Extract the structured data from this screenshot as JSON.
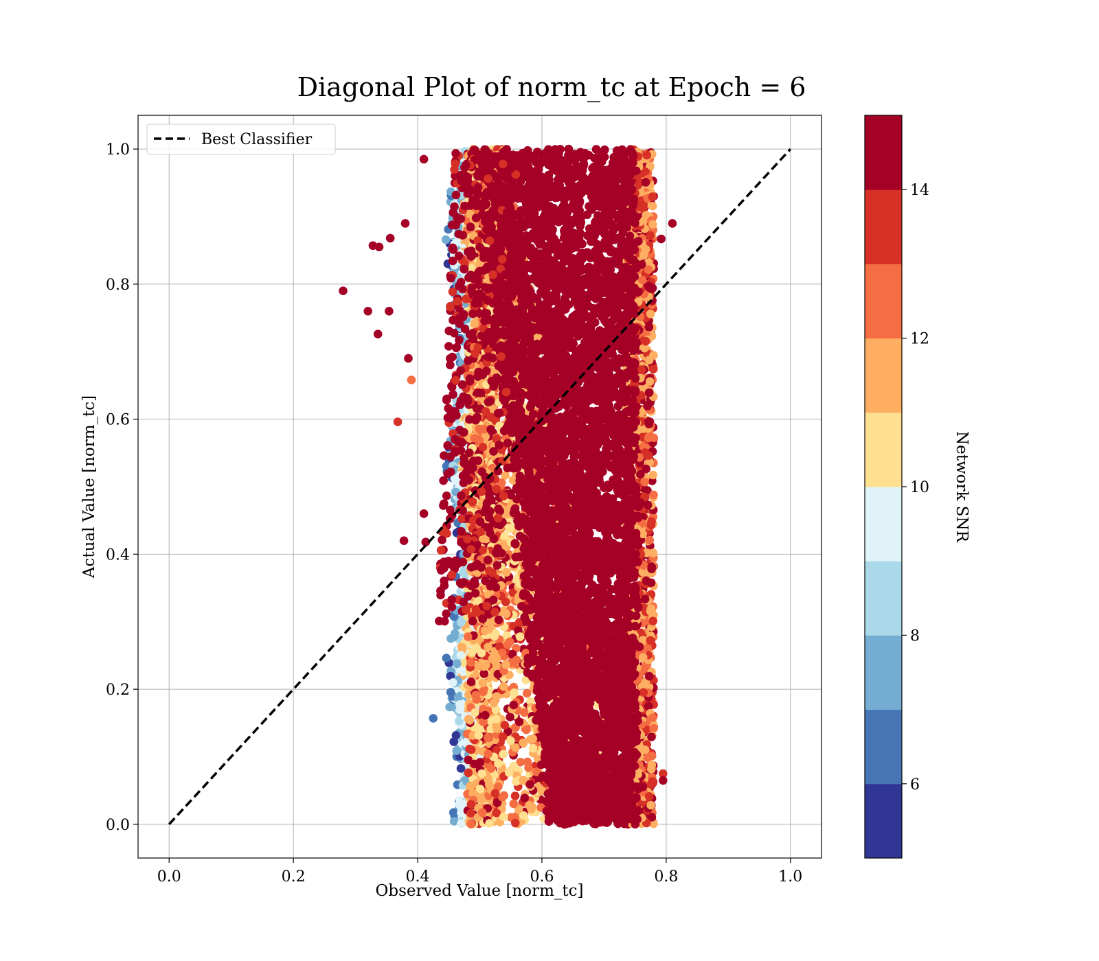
{
  "colors": {
    "grid": "#b0b0b0",
    "frame": "#000000",
    "diagonal": "#000000",
    "colormap": [
      "#313695",
      "#4575b4",
      "#74add1",
      "#abd9e9",
      "#e0f3f8",
      "#fee090",
      "#fdae61",
      "#f46d43",
      "#d73027",
      "#a50026"
    ]
  },
  "chart_data": {
    "type": "scatter",
    "title": "Diagonal Plot of norm_tc at Epoch = 6",
    "xlabel": "Observed Value [norm_tc]",
    "ylabel": "Actual Value [norm_tc]",
    "xlim": [
      -0.05,
      1.05
    ],
    "ylim": [
      -0.05,
      1.05
    ],
    "xticks": [
      "0.0",
      "0.2",
      "0.4",
      "0.6",
      "0.8",
      "1.0"
    ],
    "yticks": [
      "0.0",
      "0.2",
      "0.4",
      "0.6",
      "0.8",
      "1.0"
    ],
    "grid": true,
    "legend": {
      "position": "top-left",
      "entries": [
        "Best Classifier"
      ]
    },
    "reference_line": {
      "name": "Best Classifier",
      "style": "dashed",
      "from": [
        0,
        0
      ],
      "to": [
        1,
        1
      ]
    },
    "colorbar": {
      "label": "Network SNR",
      "range": [
        5,
        15
      ],
      "levels": 10,
      "ticks": [
        "6",
        "8",
        "10",
        "12",
        "14"
      ]
    },
    "points_outline": [
      {
        "x": 0.28,
        "y": 0.79,
        "snr": 15
      },
      {
        "x": 0.32,
        "y": 0.76,
        "snr": 15
      },
      {
        "x": 0.336,
        "y": 0.726,
        "snr": 14
      },
      {
        "x": 0.328,
        "y": 0.857,
        "snr": 14
      },
      {
        "x": 0.338,
        "y": 0.855,
        "snr": 14
      },
      {
        "x": 0.356,
        "y": 0.868,
        "snr": 14
      },
      {
        "x": 0.354,
        "y": 0.76,
        "snr": 15
      },
      {
        "x": 0.368,
        "y": 0.596,
        "snr": 13
      },
      {
        "x": 0.38,
        "y": 0.89,
        "snr": 15
      },
      {
        "x": 0.385,
        "y": 0.69,
        "snr": 15
      },
      {
        "x": 0.39,
        "y": 0.658,
        "snr": 12
      },
      {
        "x": 0.378,
        "y": 0.42,
        "snr": 15
      },
      {
        "x": 0.41,
        "y": 0.46,
        "snr": 15
      },
      {
        "x": 0.413,
        "y": 0.418,
        "snr": 15
      },
      {
        "x": 0.41,
        "y": 0.985,
        "snr": 14
      },
      {
        "x": 0.425,
        "y": 0.157,
        "snr": 6
      },
      {
        "x": 0.81,
        "y": 0.89,
        "snr": 15
      },
      {
        "x": 0.792,
        "y": 0.867,
        "snr": 15
      },
      {
        "x": 0.795,
        "y": 0.075,
        "snr": 13
      },
      {
        "x": 0.795,
        "y": 0.065,
        "snr": 15
      }
    ]
  }
}
